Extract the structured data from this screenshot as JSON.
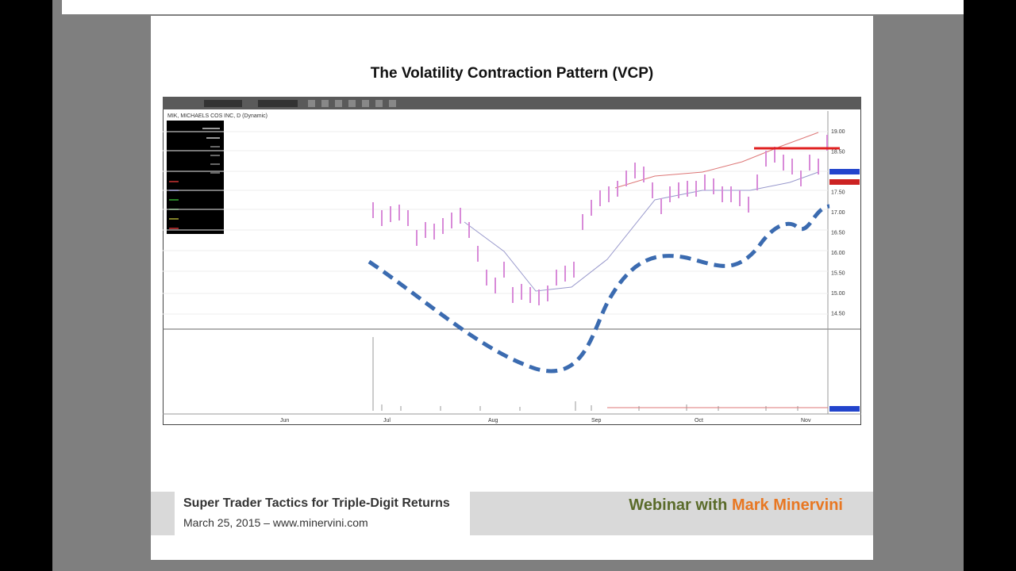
{
  "slide": {
    "title": "The Volatility Contraction Pattern (VCP)",
    "chart": {
      "header": "MIK, MICHAELS COS INC, D (Dynamic)",
      "months": [
        "Jun",
        "Jul",
        "Aug",
        "Sep",
        "Oct",
        "Nov"
      ],
      "price_labels": [
        "19.00",
        "18.50",
        "18.00",
        "17.50",
        "17.00",
        "16.50",
        "16.00",
        "15.50",
        "15.00",
        "14.50"
      ]
    },
    "footer": {
      "line1": "Super Trader Tactics for Triple-Digit Returns",
      "line2": "March 25, 2015 – www.minervini.com",
      "webinar": "Webinar with",
      "presenter": "Mark Minervini"
    }
  }
}
